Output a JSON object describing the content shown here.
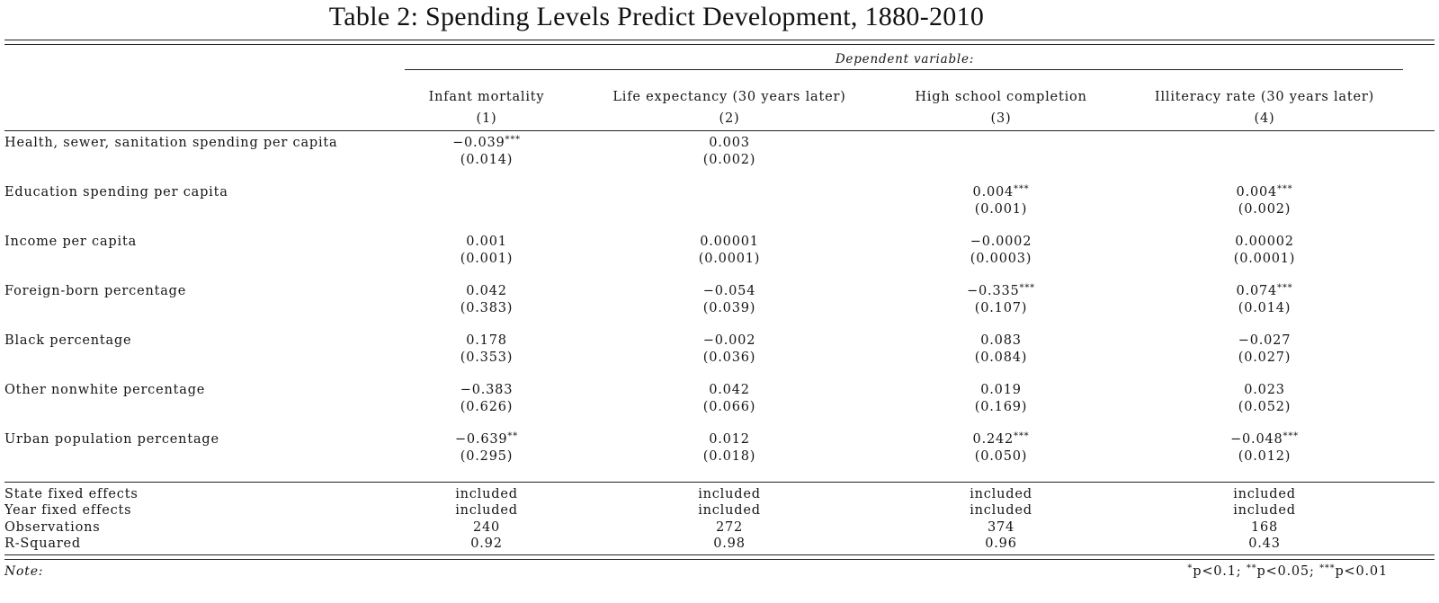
{
  "title": "Table 2: Spending Levels Predict Development, 1880-2010",
  "dependent_variable_label": "Dependent variable:",
  "columns": [
    {
      "name": "Infant mortality",
      "number": "(1)"
    },
    {
      "name": "Life expectancy (30 years later)",
      "number": "(2)"
    },
    {
      "name": "High school completion",
      "number": "(3)"
    },
    {
      "name": "Illiteracy rate (30 years later)",
      "number": "(4)"
    }
  ],
  "rows": [
    {
      "label": "Health, sewer, sanitation spending per capita",
      "cells": [
        {
          "coef": "−0.039",
          "stars": "***",
          "se": "(0.014)"
        },
        {
          "coef": "0.003",
          "stars": "",
          "se": "(0.002)"
        },
        {
          "coef": "",
          "stars": "",
          "se": ""
        },
        {
          "coef": "",
          "stars": "",
          "se": ""
        }
      ]
    },
    {
      "label": "Education spending per capita",
      "cells": [
        {
          "coef": "",
          "stars": "",
          "se": ""
        },
        {
          "coef": "",
          "stars": "",
          "se": ""
        },
        {
          "coef": "0.004",
          "stars": "***",
          "se": "(0.001)"
        },
        {
          "coef": "0.004",
          "stars": "***",
          "se": "(0.002)"
        }
      ]
    },
    {
      "label": "Income per capita",
      "cells": [
        {
          "coef": "0.001",
          "stars": "",
          "se": "(0.001)"
        },
        {
          "coef": "0.00001",
          "stars": "",
          "se": "(0.0001)"
        },
        {
          "coef": "−0.0002",
          "stars": "",
          "se": "(0.0003)"
        },
        {
          "coef": "0.00002",
          "stars": "",
          "se": "(0.0001)"
        }
      ]
    },
    {
      "label": "Foreign-born percentage",
      "cells": [
        {
          "coef": "0.042",
          "stars": "",
          "se": "(0.383)"
        },
        {
          "coef": "−0.054",
          "stars": "",
          "se": "(0.039)"
        },
        {
          "coef": "−0.335",
          "stars": "***",
          "se": "(0.107)"
        },
        {
          "coef": "0.074",
          "stars": "***",
          "se": "(0.014)"
        }
      ]
    },
    {
      "label": "Black percentage",
      "cells": [
        {
          "coef": "0.178",
          "stars": "",
          "se": "(0.353)"
        },
        {
          "coef": "−0.002",
          "stars": "",
          "se": "(0.036)"
        },
        {
          "coef": "0.083",
          "stars": "",
          "se": "(0.084)"
        },
        {
          "coef": "−0.027",
          "stars": "",
          "se": "(0.027)"
        }
      ]
    },
    {
      "label": "Other nonwhite percentage",
      "cells": [
        {
          "coef": "−0.383",
          "stars": "",
          "se": "(0.626)"
        },
        {
          "coef": "0.042",
          "stars": "",
          "se": "(0.066)"
        },
        {
          "coef": "0.019",
          "stars": "",
          "se": "(0.169)"
        },
        {
          "coef": "0.023",
          "stars": "",
          "se": "(0.052)"
        }
      ]
    },
    {
      "label": "Urban population percentage",
      "cells": [
        {
          "coef": "−0.639",
          "stars": "**",
          "se": "(0.295)"
        },
        {
          "coef": "0.012",
          "stars": "",
          "se": "(0.018)"
        },
        {
          "coef": "0.242",
          "stars": "***",
          "se": "(0.050)"
        },
        {
          "coef": "−0.048",
          "stars": "***",
          "se": "(0.012)"
        }
      ]
    }
  ],
  "stats": [
    {
      "label": "State fixed effects",
      "values": [
        "included",
        "included",
        "included",
        "included"
      ]
    },
    {
      "label": "Year fixed effects",
      "values": [
        "included",
        "included",
        "included",
        "included"
      ]
    },
    {
      "label": "Observations",
      "values": [
        "240",
        "272",
        "374",
        "168"
      ]
    },
    {
      "label": "R-Squared",
      "values": [
        "0.92",
        "0.98",
        "0.96",
        "0.43"
      ]
    }
  ],
  "note_label": "Note:",
  "significance": [
    {
      "stars": "*",
      "text": "p<0.1;"
    },
    {
      "stars": "**",
      "text": "p<0.05;"
    },
    {
      "stars": "***",
      "text": "p<0.01"
    }
  ]
}
